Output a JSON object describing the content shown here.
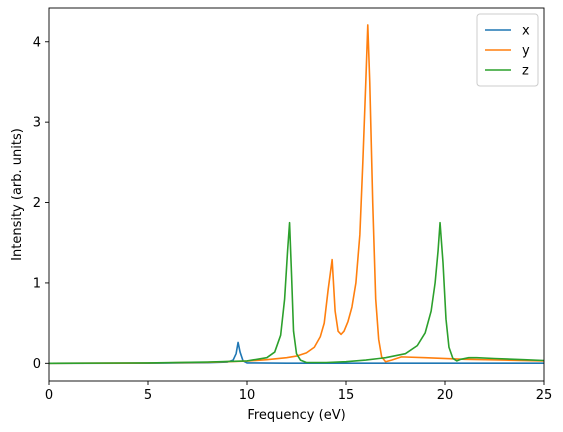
{
  "chart_data": {
    "type": "line",
    "title": "",
    "xlabel": "Frequency (eV)",
    "ylabel": "Intensity (arb. units)",
    "xlim": [
      0,
      25
    ],
    "ylim": [
      -0.22,
      4.42
    ],
    "xticks": [
      0,
      5,
      10,
      15,
      20,
      25
    ],
    "yticks": [
      0,
      1,
      2,
      3,
      4
    ],
    "grid": false,
    "legend_position": "top-right",
    "series": [
      {
        "name": "x",
        "color": "#1f77b4",
        "points": [
          [
            0,
            0.0
          ],
          [
            5,
            0.002
          ],
          [
            8,
            0.008
          ],
          [
            9.0,
            0.015
          ],
          [
            9.3,
            0.04
          ],
          [
            9.45,
            0.12
          ],
          [
            9.55,
            0.26
          ],
          [
            9.65,
            0.14
          ],
          [
            9.8,
            0.03
          ],
          [
            10.0,
            0.005
          ],
          [
            12,
            0.002
          ],
          [
            15,
            0.002
          ],
          [
            20,
            0.001
          ],
          [
            25,
            0.001
          ]
        ]
      },
      {
        "name": "y",
        "color": "#ff7f0e",
        "points": [
          [
            0,
            0.0
          ],
          [
            5,
            0.004
          ],
          [
            8,
            0.012
          ],
          [
            10,
            0.028
          ],
          [
            11,
            0.045
          ],
          [
            12,
            0.07
          ],
          [
            12.5,
            0.09
          ],
          [
            13,
            0.13
          ],
          [
            13.4,
            0.2
          ],
          [
            13.7,
            0.33
          ],
          [
            13.9,
            0.5
          ],
          [
            14.1,
            0.92
          ],
          [
            14.3,
            1.29
          ],
          [
            14.45,
            0.65
          ],
          [
            14.6,
            0.4
          ],
          [
            14.75,
            0.36
          ],
          [
            14.9,
            0.4
          ],
          [
            15.1,
            0.52
          ],
          [
            15.3,
            0.7
          ],
          [
            15.5,
            1.0
          ],
          [
            15.7,
            1.6
          ],
          [
            15.85,
            2.5
          ],
          [
            16.0,
            3.5
          ],
          [
            16.1,
            4.21
          ],
          [
            16.2,
            3.5
          ],
          [
            16.35,
            2.0
          ],
          [
            16.5,
            0.8
          ],
          [
            16.65,
            0.3
          ],
          [
            16.8,
            0.08
          ],
          [
            17.0,
            0.02
          ],
          [
            17.3,
            0.04
          ],
          [
            17.8,
            0.08
          ],
          [
            19,
            0.07
          ],
          [
            21,
            0.05
          ],
          [
            23,
            0.04
          ],
          [
            25,
            0.03
          ]
        ]
      },
      {
        "name": "z",
        "color": "#2ca02c",
        "points": [
          [
            0,
            0.0
          ],
          [
            5,
            0.005
          ],
          [
            8,
            0.015
          ],
          [
            10,
            0.03
          ],
          [
            11,
            0.07
          ],
          [
            11.4,
            0.14
          ],
          [
            11.7,
            0.35
          ],
          [
            11.9,
            0.8
          ],
          [
            12.05,
            1.4
          ],
          [
            12.15,
            1.75
          ],
          [
            12.25,
            1.1
          ],
          [
            12.35,
            0.4
          ],
          [
            12.5,
            0.12
          ],
          [
            12.7,
            0.04
          ],
          [
            13,
            0.01
          ],
          [
            14,
            0.01
          ],
          [
            15,
            0.02
          ],
          [
            16,
            0.04
          ],
          [
            17,
            0.07
          ],
          [
            18,
            0.12
          ],
          [
            18.6,
            0.22
          ],
          [
            19.0,
            0.38
          ],
          [
            19.3,
            0.65
          ],
          [
            19.5,
            1.0
          ],
          [
            19.65,
            1.4
          ],
          [
            19.75,
            1.75
          ],
          [
            19.9,
            1.25
          ],
          [
            20.05,
            0.55
          ],
          [
            20.2,
            0.2
          ],
          [
            20.4,
            0.06
          ],
          [
            20.6,
            0.03
          ],
          [
            20.8,
            0.05
          ],
          [
            21.2,
            0.07
          ],
          [
            21.6,
            0.07
          ],
          [
            22.5,
            0.06
          ],
          [
            24,
            0.045
          ],
          [
            25,
            0.035
          ]
        ]
      }
    ]
  }
}
